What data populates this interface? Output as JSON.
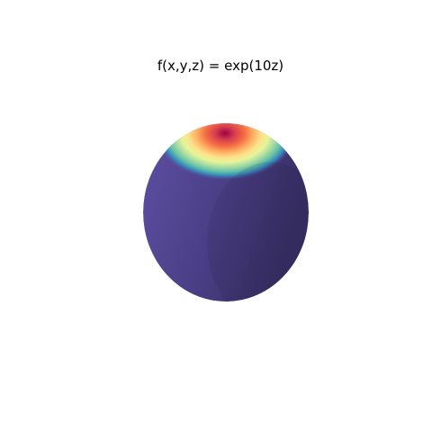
{
  "chart_data": {
    "type": "surface",
    "title": "f(x,y,z) = exp(10z)",
    "surface": "unit sphere",
    "function": "exp(10z)",
    "colormap": "Spectral_r",
    "axes_visible": false,
    "grid": false,
    "colors": {
      "low": "#5e4fa2",
      "high": "#9e0142"
    }
  }
}
